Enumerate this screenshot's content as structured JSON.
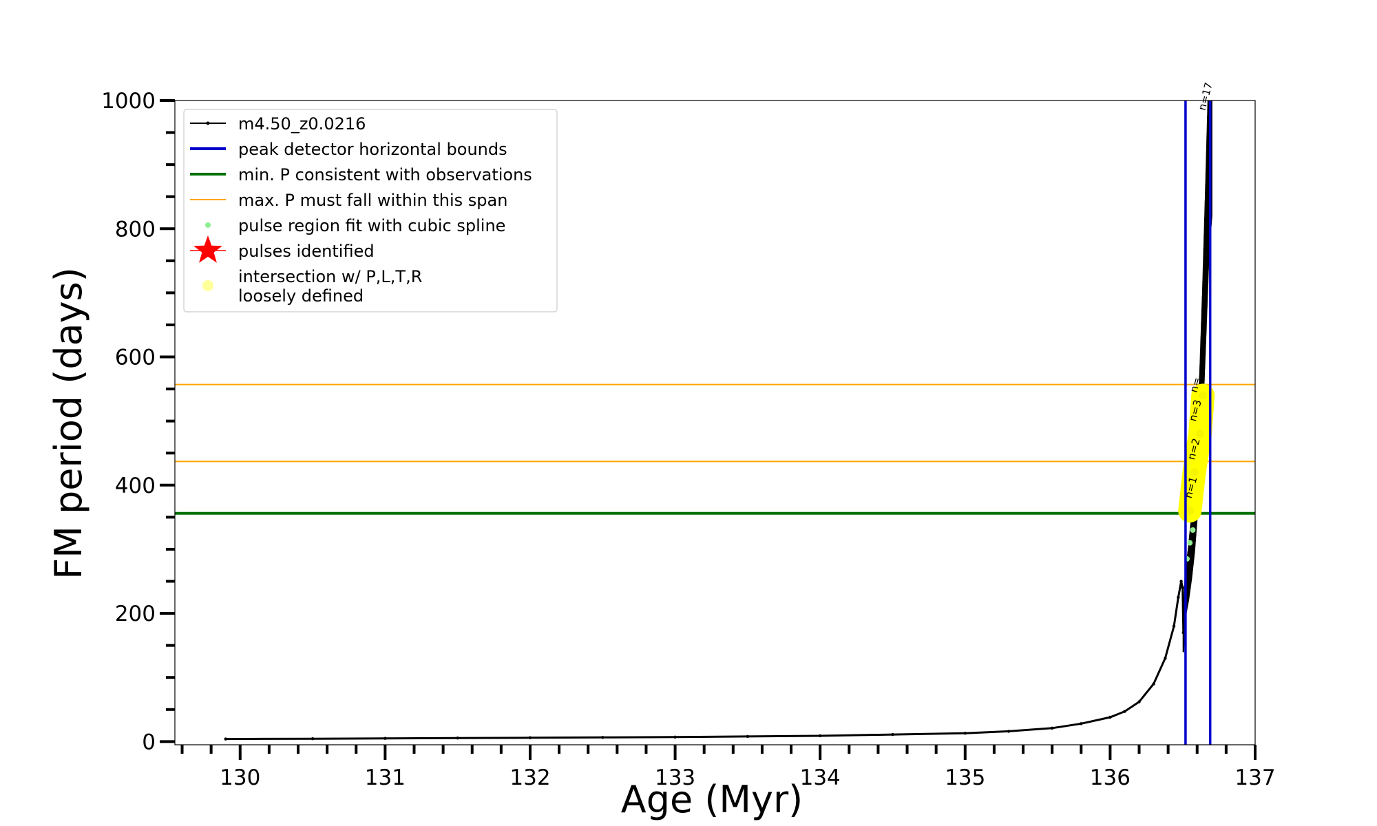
{
  "chart_data": {
    "type": "line",
    "xlabel": "Age (Myr)",
    "ylabel": "FM period (days)",
    "xlim": [
      129.55,
      137.0
    ],
    "ylim": [
      -5,
      1000
    ],
    "xticks": [
      "130",
      "131",
      "132",
      "133",
      "134",
      "135",
      "136",
      "137"
    ],
    "xtick_values": [
      130,
      131,
      132,
      133,
      134,
      135,
      136,
      137
    ],
    "yticks": [
      "0",
      "200",
      "400",
      "600",
      "800",
      "1000"
    ],
    "ytick_values": [
      0,
      200,
      400,
      600,
      800,
      1000
    ],
    "grid": false,
    "legend_position": "top-left",
    "series": [
      {
        "name": "m4.50_z0.0216",
        "color": "#000000",
        "x": [
          129.9,
          130.5,
          131.0,
          131.5,
          132.0,
          132.5,
          133.0,
          133.5,
          134.0,
          134.5,
          135.0,
          135.3,
          135.6,
          135.8,
          136.0,
          136.1,
          136.2,
          136.3,
          136.38,
          136.44,
          136.47,
          136.49,
          136.5,
          136.505,
          136.52,
          136.54,
          136.56,
          136.58,
          136.6,
          136.62,
          136.64,
          136.66,
          136.68,
          136.7
        ],
        "y": [
          4,
          4.5,
          5,
          5.5,
          6,
          6.5,
          7,
          8,
          9,
          11,
          13,
          16,
          21,
          28,
          38,
          47,
          62,
          90,
          130,
          180,
          225,
          250,
          240,
          170,
          240,
          270,
          310,
          360,
          430,
          520,
          640,
          780,
          930,
          1000
        ]
      }
    ],
    "vlines": [
      {
        "name": "peak detector horizontal bounds",
        "x": [
          136.52,
          136.69
        ],
        "color": "#0000cc"
      }
    ],
    "hlines": [
      {
        "name": "min. P consistent with observations",
        "y": 356,
        "color": "#007000"
      },
      {
        "name": "max. P must fall within this span",
        "y": [
          437,
          557
        ],
        "color": "#ffa500"
      }
    ],
    "scatter_series": [
      {
        "name": "pulse region fit with cubic spline",
        "color": "#90ee90",
        "x": [
          136.53,
          136.55,
          136.57,
          136.59,
          136.6
        ],
        "y": [
          285,
          310,
          330,
          350,
          365
        ]
      },
      {
        "name": "pulses identified",
        "color": "#ff0000",
        "x": [],
        "y": []
      },
      {
        "name": "intersection w/ P,L,T,R\nloosely defined",
        "color": "#ffff66",
        "x": [
          136.55,
          136.58,
          136.62,
          136.64
        ],
        "y": [
          360,
          420,
          480,
          540
        ]
      }
    ],
    "legend_entries": [
      {
        "label": "m4.50_z0.0216",
        "style": "line-marker",
        "color": "#000000"
      },
      {
        "label": "peak detector horizontal bounds",
        "style": "line",
        "color": "#0000cc"
      },
      {
        "label": "min. P consistent with observations",
        "style": "line",
        "color": "#007000"
      },
      {
        "label": "max. P must fall within this span",
        "style": "thin-line",
        "color": "#ffa500"
      },
      {
        "label": "pulse region fit with cubic spline",
        "style": "dot",
        "color": "#90ee90"
      },
      {
        "label": "pulses identified",
        "style": "star",
        "color": "#ff0000"
      },
      {
        "label": "intersection w/ P,L,T,R",
        "label2": "loosely defined",
        "style": "dot-large",
        "color": "#ffff99"
      }
    ],
    "annotations": [
      {
        "text": "n=1",
        "x": 136.58,
        "y": 395
      },
      {
        "text": "n=2",
        "x": 136.6,
        "y": 455
      },
      {
        "text": "n=3",
        "x": 136.61,
        "y": 515
      },
      {
        "text": "n=",
        "x": 136.61,
        "y": 555
      },
      {
        "text": "n=17",
        "x": 136.68,
        "y": 1005
      }
    ]
  }
}
